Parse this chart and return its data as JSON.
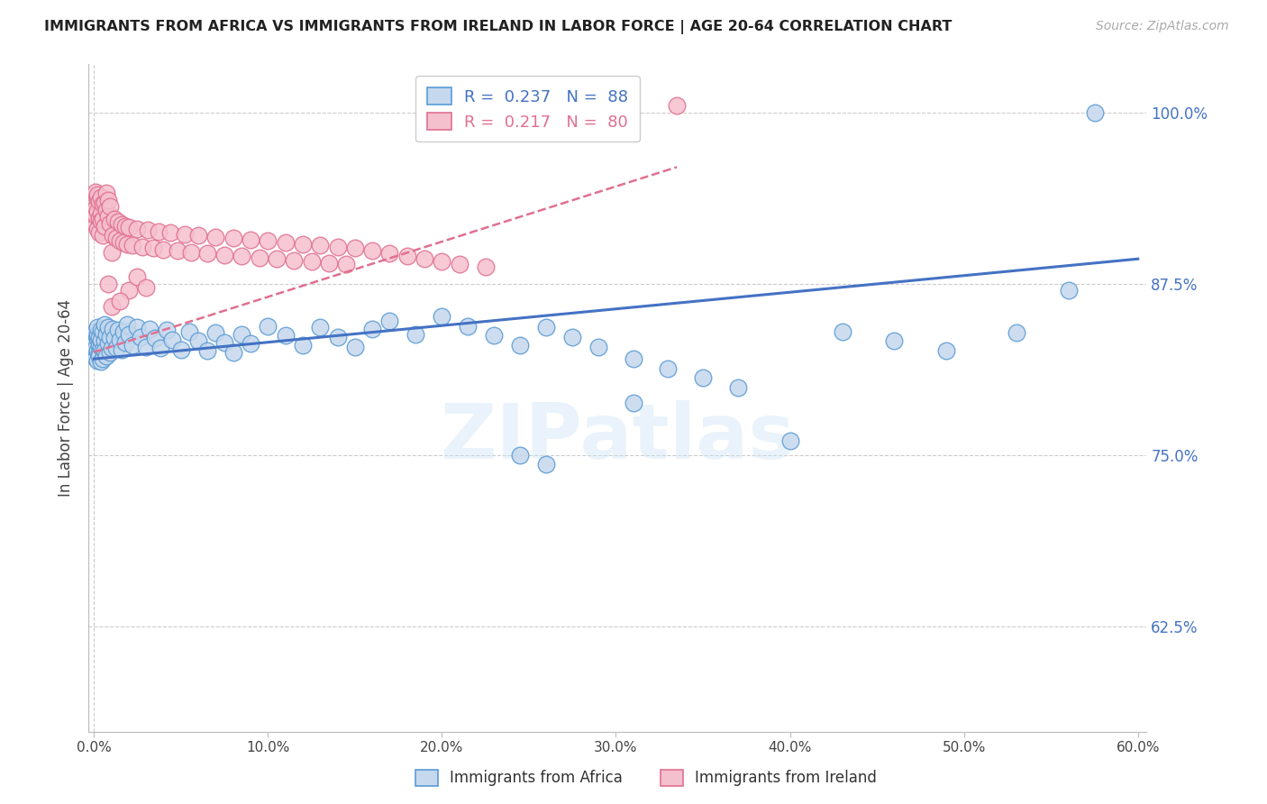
{
  "title": "IMMIGRANTS FROM AFRICA VS IMMIGRANTS FROM IRELAND IN LABOR FORCE | AGE 20-64 CORRELATION CHART",
  "source": "Source: ZipAtlas.com",
  "ylabel": "In Labor Force | Age 20-64",
  "xlim_low": -0.003,
  "xlim_high": 0.605,
  "ylim_low": 0.548,
  "ylim_high": 1.035,
  "yticks": [
    0.625,
    0.75,
    0.875,
    1.0
  ],
  "ytick_labels": [
    "62.5%",
    "75.0%",
    "87.5%",
    "100.0%"
  ],
  "xticks": [
    0.0,
    0.1,
    0.2,
    0.3,
    0.4,
    0.5,
    0.6
  ],
  "xtick_labels": [
    "0.0%",
    "10.0%",
    "20.0%",
    "30.0%",
    "40.0%",
    "50.0%",
    "60.0%"
  ],
  "africa_N": 88,
  "ireland_N": 80,
  "africa_R": 0.237,
  "ireland_R": 0.217,
  "africa_face": "#c5d8ed",
  "africa_edge": "#5b9bd5",
  "ireland_face": "#f5c0ce",
  "ireland_edge": "#e07090",
  "trend_africa": "#4472c4",
  "trend_ireland": "#e07090",
  "axis_color": "#4472c4",
  "grid_color": "#cccccc",
  "watermark": "ZIPatlas",
  "legend_R_africa": "R =  0.237   N =  88",
  "legend_R_ireland": "R =  0.217   N =  80",
  "bottom_label_africa": "Immigrants from Africa",
  "bottom_label_ireland": "Immigrants from Ireland",
  "africa_x": [
    0.001,
    0.001,
    0.001,
    0.001,
    0.002,
    0.002,
    0.002,
    0.002,
    0.002,
    0.003,
    0.003,
    0.003,
    0.003,
    0.004,
    0.004,
    0.004,
    0.004,
    0.005,
    0.005,
    0.005,
    0.006,
    0.006,
    0.006,
    0.007,
    0.007,
    0.008,
    0.008,
    0.009,
    0.009,
    0.01,
    0.011,
    0.012,
    0.013,
    0.014,
    0.015,
    0.016,
    0.017,
    0.018,
    0.019,
    0.02,
    0.022,
    0.025,
    0.027,
    0.03,
    0.032,
    0.035,
    0.038,
    0.042,
    0.045,
    0.05,
    0.055,
    0.06,
    0.065,
    0.07,
    0.075,
    0.08,
    0.085,
    0.09,
    0.1,
    0.11,
    0.12,
    0.13,
    0.14,
    0.15,
    0.16,
    0.17,
    0.185,
    0.2,
    0.215,
    0.23,
    0.245,
    0.26,
    0.275,
    0.29,
    0.31,
    0.33,
    0.35,
    0.37,
    0.4,
    0.43,
    0.46,
    0.49,
    0.53,
    0.56,
    0.245,
    0.26,
    0.31,
    0.575
  ],
  "africa_y": [
    0.832,
    0.821,
    0.84,
    0.828,
    0.835,
    0.819,
    0.838,
    0.826,
    0.843,
    0.83,
    0.825,
    0.836,
    0.822,
    0.841,
    0.829,
    0.818,
    0.834,
    0.827,
    0.84,
    0.82,
    0.833,
    0.845,
    0.826,
    0.838,
    0.822,
    0.831,
    0.843,
    0.825,
    0.836,
    0.828,
    0.842,
    0.835,
    0.828,
    0.841,
    0.834,
    0.827,
    0.84,
    0.832,
    0.845,
    0.838,
    0.83,
    0.843,
    0.836,
    0.829,
    0.842,
    0.835,
    0.828,
    0.841,
    0.834,
    0.827,
    0.84,
    0.833,
    0.826,
    0.839,
    0.832,
    0.825,
    0.838,
    0.831,
    0.844,
    0.837,
    0.83,
    0.843,
    0.836,
    0.829,
    0.842,
    0.848,
    0.838,
    0.851,
    0.844,
    0.837,
    0.83,
    0.843,
    0.836,
    0.829,
    0.82,
    0.813,
    0.806,
    0.799,
    0.76,
    0.84,
    0.833,
    0.826,
    0.839,
    0.87,
    0.75,
    0.743,
    0.788,
    1.0
  ],
  "ireland_x": [
    0.001,
    0.001,
    0.001,
    0.001,
    0.002,
    0.002,
    0.002,
    0.002,
    0.003,
    0.003,
    0.003,
    0.004,
    0.004,
    0.004,
    0.005,
    0.005,
    0.005,
    0.006,
    0.006,
    0.007,
    0.007,
    0.008,
    0.008,
    0.009,
    0.009,
    0.01,
    0.011,
    0.012,
    0.013,
    0.014,
    0.015,
    0.016,
    0.017,
    0.018,
    0.019,
    0.02,
    0.022,
    0.025,
    0.028,
    0.031,
    0.034,
    0.037,
    0.04,
    0.044,
    0.048,
    0.052,
    0.056,
    0.06,
    0.065,
    0.07,
    0.075,
    0.08,
    0.085,
    0.09,
    0.095,
    0.1,
    0.105,
    0.11,
    0.115,
    0.12,
    0.125,
    0.13,
    0.135,
    0.14,
    0.145,
    0.15,
    0.16,
    0.17,
    0.18,
    0.19,
    0.2,
    0.21,
    0.225,
    0.01,
    0.02,
    0.015,
    0.008,
    0.025,
    0.03,
    0.335
  ],
  "ireland_y": [
    0.93,
    0.918,
    0.942,
    0.925,
    0.937,
    0.915,
    0.928,
    0.94,
    0.923,
    0.935,
    0.912,
    0.926,
    0.938,
    0.921,
    0.933,
    0.91,
    0.922,
    0.934,
    0.917,
    0.929,
    0.941,
    0.924,
    0.936,
    0.919,
    0.931,
    0.898,
    0.91,
    0.922,
    0.908,
    0.92,
    0.906,
    0.918,
    0.905,
    0.917,
    0.904,
    0.916,
    0.903,
    0.915,
    0.902,
    0.914,
    0.901,
    0.913,
    0.9,
    0.912,
    0.899,
    0.911,
    0.898,
    0.91,
    0.897,
    0.909,
    0.896,
    0.908,
    0.895,
    0.907,
    0.894,
    0.906,
    0.893,
    0.905,
    0.892,
    0.904,
    0.891,
    0.903,
    0.89,
    0.902,
    0.889,
    0.901,
    0.899,
    0.897,
    0.895,
    0.893,
    0.891,
    0.889,
    0.887,
    0.858,
    0.87,
    0.862,
    0.875,
    0.88,
    0.872,
    1.005
  ],
  "trend_a_x0": 0.0,
  "trend_a_x1": 0.6,
  "trend_a_y0": 0.82,
  "trend_a_y1": 0.893,
  "trend_i_x0": 0.0,
  "trend_i_x1": 0.335,
  "trend_i_y0": 0.825,
  "trend_i_y1": 0.96
}
